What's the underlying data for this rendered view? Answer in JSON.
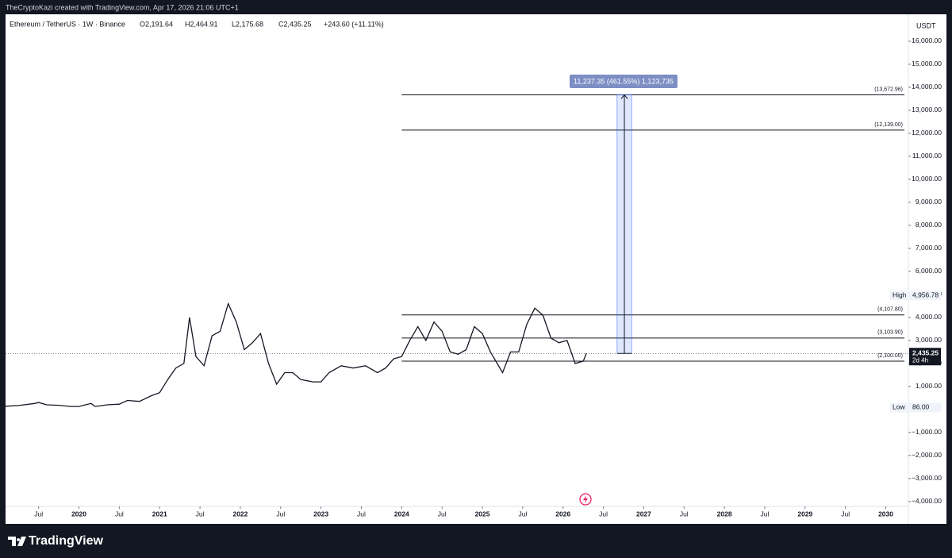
{
  "header": {
    "credit": "TheCryptoKazi created with TradingView.com, Apr 17, 2026 21:06 UTC+1",
    "brand": "TradingView"
  },
  "chart_data": {
    "type": "line",
    "title": "Ethereum / TetherUS · 1W · Binance",
    "ohlc": [
      "O2,191.64",
      "H2,464.91",
      "L2,175.68",
      "C2,435.25",
      "+243.60 (+11.11%)"
    ],
    "currency": "USDT",
    "color": "#131722",
    "xlim": [
      2019.09,
      2030.28
    ],
    "ylim": [
      -4800,
      17000
    ],
    "xticks": [
      {
        "value": 2019.5,
        "label": "Jul"
      },
      {
        "value": 2020,
        "label": "2020"
      },
      {
        "value": 2020.5,
        "label": "Jul"
      },
      {
        "value": 2021,
        "label": "2021"
      },
      {
        "value": 2021.5,
        "label": "Jul"
      },
      {
        "value": 2022,
        "label": "2022"
      },
      {
        "value": 2022.5,
        "label": "Jul"
      },
      {
        "value": 2023,
        "label": "2023"
      },
      {
        "value": 2023.5,
        "label": "Jul"
      },
      {
        "value": 2024,
        "label": "2024"
      },
      {
        "value": 2024.5,
        "label": "Jul"
      },
      {
        "value": 2025,
        "label": "2025"
      },
      {
        "value": 2025.5,
        "label": "Jul"
      },
      {
        "value": 2026,
        "label": "2026"
      },
      {
        "value": 2026.5,
        "label": "Jul"
      },
      {
        "value": 2027,
        "label": "2027"
      },
      {
        "value": 2027.5,
        "label": "Jul"
      },
      {
        "value": 2028,
        "label": "2028"
      },
      {
        "value": 2028.5,
        "label": "Jul"
      },
      {
        "value": 2029,
        "label": "2029"
      },
      {
        "value": 2029.5,
        "label": "Jul"
      },
      {
        "value": 2030,
        "label": "2030"
      }
    ],
    "yticks": [
      {
        "value": 16000,
        "label": "16,000.00"
      },
      {
        "value": 15000,
        "label": "15,000.00"
      },
      {
        "value": 14000,
        "label": "14,000.00"
      },
      {
        "value": 13000,
        "label": "13,000.00"
      },
      {
        "value": 12000,
        "label": "12,000.00"
      },
      {
        "value": 11000,
        "label": "11,000.00"
      },
      {
        "value": 10000,
        "label": "10,000.00"
      },
      {
        "value": 9000,
        "label": "9,000.00"
      },
      {
        "value": 8000,
        "label": "8,000.00"
      },
      {
        "value": 7000,
        "label": "7,000.00"
      },
      {
        "value": 6000,
        "label": "6,000.00"
      },
      {
        "value": 5000,
        "label": "5,000.00"
      },
      {
        "value": 4000,
        "label": "4,000.00"
      },
      {
        "value": 3000,
        "label": "3,000.00"
      },
      {
        "value": 2000,
        "label": "2,000.00"
      },
      {
        "value": 1000,
        "label": "1,000.00"
      },
      {
        "value": -1000,
        "label": "−1,000.00"
      },
      {
        "value": -2000,
        "label": "−2,000.00"
      },
      {
        "value": -3000,
        "label": "−3,000.00"
      },
      {
        "value": -4000,
        "label": "−4,000.00"
      }
    ],
    "x": [
      2019.09,
      2019.25,
      2019.45,
      2019.5,
      2019.6,
      2019.75,
      2019.9,
      2020.0,
      2020.15,
      2020.2,
      2020.35,
      2020.5,
      2020.6,
      2020.75,
      2020.9,
      2021.0,
      2021.1,
      2021.2,
      2021.3,
      2021.37,
      2021.45,
      2021.55,
      2021.65,
      2021.75,
      2021.85,
      2021.95,
      2022.05,
      2022.15,
      2022.25,
      2022.35,
      2022.45,
      2022.55,
      2022.65,
      2022.75,
      2022.9,
      2023.0,
      2023.1,
      2023.25,
      2023.4,
      2023.55,
      2023.7,
      2023.8,
      2023.9,
      2024.0,
      2024.1,
      2024.2,
      2024.3,
      2024.4,
      2024.5,
      2024.6,
      2024.7,
      2024.8,
      2024.9,
      2025.0,
      2025.1,
      2025.25,
      2025.35,
      2025.45,
      2025.55,
      2025.65,
      2025.75,
      2025.85,
      2025.95,
      2026.05,
      2026.15,
      2026.25,
      2026.29
    ],
    "series": [
      {
        "name": "Ethereum / TetherUS",
        "values": [
          140,
          170,
          260,
          300,
          200,
          180,
          130,
          130,
          260,
          130,
          200,
          230,
          390,
          350,
          600,
          730,
          1300,
          1800,
          2000,
          4000,
          2300,
          1900,
          3200,
          3400,
          4600,
          3800,
          2600,
          2900,
          3300,
          2000,
          1100,
          1600,
          1600,
          1300,
          1200,
          1200,
          1600,
          1900,
          1800,
          1900,
          1600,
          1800,
          2200,
          2300,
          3000,
          3600,
          3000,
          3800,
          3400,
          2500,
          2400,
          2600,
          3600,
          3300,
          2500,
          1600,
          2500,
          2500,
          3700,
          4400,
          4100,
          3100,
          2900,
          3000,
          2000,
          2100,
          2435.25
        ]
      }
    ],
    "levels": [
      {
        "value": 13672.96,
        "label": "(13,672.96)",
        "x": 2024.0
      },
      {
        "value": 12139.0,
        "label": "(12,139.00)",
        "x": 2024.0
      },
      {
        "value": 4107.8,
        "label": "(4,107.80)",
        "x": 2024.0
      },
      {
        "value": 3103.9,
        "label": "(3,103.90)",
        "x": 2024.0
      },
      {
        "value": 2100.0,
        "label": "(2,100.00)",
        "x": 2024.0
      }
    ],
    "measure": {
      "from": 2435.25,
      "to": 13672.96,
      "x": [
        2026.67,
        2026.85
      ],
      "label": "11,237.35 (461.55%) 1,123,735"
    },
    "high": {
      "name": "High",
      "value": 4956.78,
      "label": "4,956.78"
    },
    "low": {
      "name": "Low",
      "value": 86.0,
      "label": "86.00"
    },
    "last": {
      "value": 2435.25,
      "label": "2,435.25",
      "countdown": "2d 4h"
    }
  }
}
